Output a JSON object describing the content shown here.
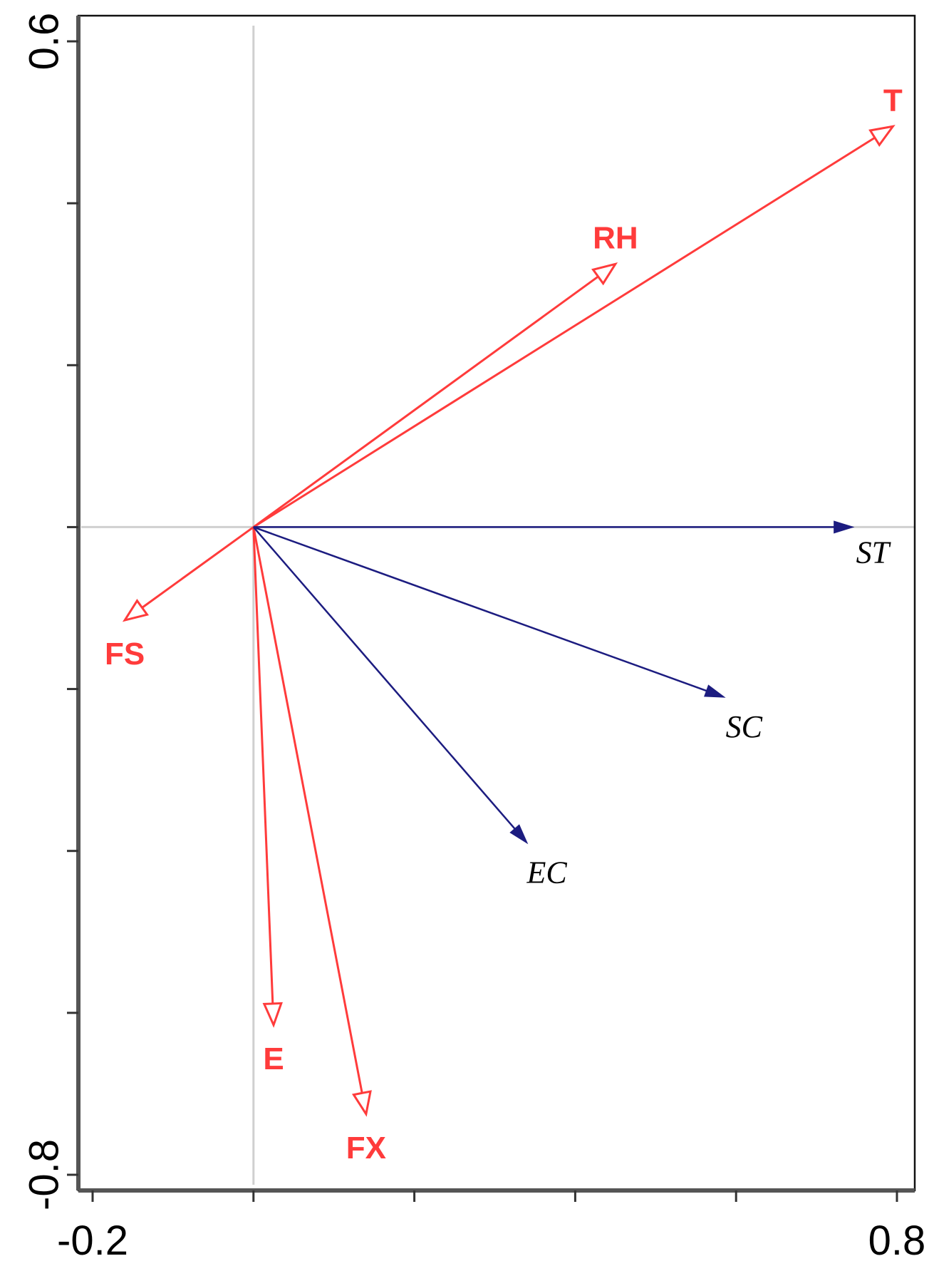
{
  "chart_data": {
    "type": "scatter",
    "subtype": "biplot-arrows",
    "title": "",
    "xlabel": "",
    "ylabel": "",
    "xlim": [
      -0.2,
      0.8
    ],
    "ylim": [
      -0.8,
      0.6
    ],
    "x_ticks": [
      -0.2,
      0.0,
      0.2,
      0.4,
      0.6,
      0.8
    ],
    "y_ticks": [
      -0.8,
      -0.6,
      -0.4,
      -0.2,
      0.0,
      0.2,
      0.4,
      0.6
    ],
    "x_tick_labels": [
      {
        "value": -0.2,
        "label": "-0.2"
      },
      {
        "value": 0.8,
        "label": "0.8"
      }
    ],
    "y_tick_labels": [
      {
        "value": 0.6,
        "label": "0.6"
      },
      {
        "value": -0.8,
        "label": "-0.8"
      }
    ],
    "grid": false,
    "zero_lines": true,
    "series": [
      {
        "group": "explanatory",
        "color": "#ff3b3b",
        "arrow_style": "open",
        "label_style": "bold",
        "arrows": [
          {
            "label": "T",
            "x": 0.795,
            "y": 0.495
          },
          {
            "label": "RH",
            "x": 0.45,
            "y": 0.325
          },
          {
            "label": "FS",
            "x": -0.16,
            "y": -0.115
          },
          {
            "label": "E",
            "x": 0.025,
            "y": -0.615
          },
          {
            "label": "FX",
            "x": 0.14,
            "y": -0.725
          }
        ]
      },
      {
        "group": "response",
        "color": "#1c1c80",
        "arrow_style": "filled",
        "label_style": "italic",
        "arrows": [
          {
            "label": "ST",
            "x": 0.745,
            "y": 0.0
          },
          {
            "label": "SC",
            "x": 0.585,
            "y": -0.21
          },
          {
            "label": "EC",
            "x": 0.34,
            "y": -0.39
          }
        ]
      }
    ]
  }
}
